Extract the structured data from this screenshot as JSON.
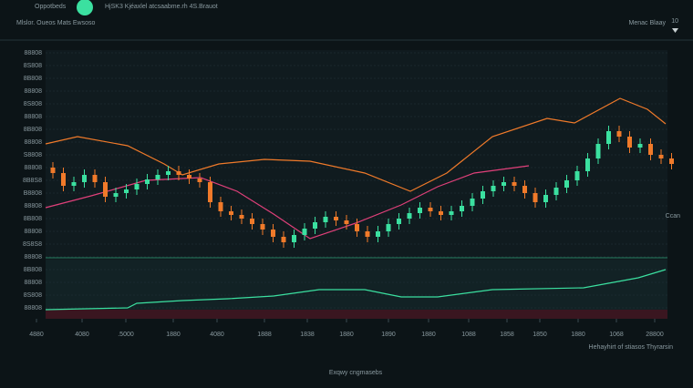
{
  "header": {
    "brand": "Oppotbeds",
    "ticker_info": "HjSK3 Kjéaxlel atcsaabme.rh 4S.Brauot",
    "menu": "Menac Blaay",
    "menu_value": "10",
    "subtitle": "Mlslor. Oueos Mats Ewsoso"
  },
  "footer": {
    "legend_note": "Hehayhirt of stiasos Thyrarsin",
    "caption": "Exqwy cngmasebs"
  },
  "chart_data": {
    "type": "candlestick",
    "side_label": "Ccan",
    "up_color": "#3be0a0",
    "down_color": "#f07a2a",
    "grid": true,
    "xlim": [
      0,
      710
    ],
    "ylim": [
      0,
      295
    ],
    "xticks": [
      {
        "value": 10,
        "label": "4880"
      },
      {
        "value": 60,
        "label": "4080"
      },
      {
        "value": 108,
        "label": ".5000"
      },
      {
        "value": 160,
        "label": "1880"
      },
      {
        "value": 208,
        "label": "4080"
      },
      {
        "value": 260,
        "label": "1888"
      },
      {
        "value": 307,
        "label": "1838"
      },
      {
        "value": 350,
        "label": "1880"
      },
      {
        "value": 396,
        "label": "1890"
      },
      {
        "value": 440,
        "label": "1880"
      },
      {
        "value": 484,
        "label": "1088"
      },
      {
        "value": 526,
        "label": "1858"
      },
      {
        "value": 562,
        "label": "1850"
      },
      {
        "value": 604,
        "label": "1880"
      },
      {
        "value": 646,
        "label": "1068"
      },
      {
        "value": 688,
        "label": "28800"
      }
    ],
    "yticks": [
      {
        "value": 12,
        "label": "88808"
      },
      {
        "value": 26,
        "label": "8S808"
      },
      {
        "value": 40,
        "label": "88808"
      },
      {
        "value": 54,
        "label": "8B808"
      },
      {
        "value": 68,
        "label": "88808"
      },
      {
        "value": 82,
        "label": "8S8S8"
      },
      {
        "value": 96,
        "label": "88808"
      },
      {
        "value": 110,
        "label": "8B808"
      },
      {
        "value": 124,
        "label": "88808"
      },
      {
        "value": 138,
        "label": "B8808"
      },
      {
        "value": 152,
        "label": "8B8S8"
      },
      {
        "value": 166,
        "label": "88808"
      },
      {
        "value": 180,
        "label": "S8808"
      },
      {
        "value": 194,
        "label": "88808"
      },
      {
        "value": 208,
        "label": "8B808"
      },
      {
        "value": 222,
        "label": "88808"
      },
      {
        "value": 236,
        "label": "8S808"
      },
      {
        "value": 250,
        "label": "88808"
      },
      {
        "value": 264,
        "label": "8B808"
      },
      {
        "value": 278,
        "label": "8S808"
      },
      {
        "value": 292,
        "label": "88808"
      }
    ],
    "x": [
      28,
      39.5,
      51,
      62.5,
      74,
      85.5,
      97,
      108.5,
      120,
      131.5,
      143,
      154.5,
      166,
      177.5,
      189,
      200.5,
      212,
      223.5,
      235,
      246.5,
      258,
      269.5,
      281,
      292.5,
      304,
      315.5,
      327,
      338.5,
      350,
      361.5,
      373,
      384.5,
      396,
      407.5,
      419,
      430.5,
      442,
      453.5,
      465,
      476.5,
      488,
      499.5,
      511,
      522.5,
      534,
      545.5,
      557,
      568.5,
      580,
      591.5,
      603,
      614.5,
      626,
      637.5,
      649,
      660.5,
      672,
      683.5,
      695,
      706.5
    ],
    "open": [
      166,
      160,
      146,
      150,
      158,
      150,
      134,
      138,
      142,
      148,
      153,
      158,
      162,
      158,
      154,
      150,
      128,
      118,
      114,
      110,
      104,
      98,
      90,
      84,
      92,
      99,
      106,
      112,
      108,
      104,
      96,
      90,
      96,
      104,
      110,
      116,
      122,
      118,
      114,
      118,
      124,
      132,
      140,
      146,
      150,
      146,
      138,
      128,
      136,
      144,
      152,
      162,
      176,
      192,
      206,
      200,
      188,
      192,
      180,
      176
    ],
    "high": [
      172,
      166,
      156,
      164,
      164,
      156,
      144,
      148,
      154,
      159,
      164,
      168,
      168,
      164,
      160,
      156,
      134,
      124,
      120,
      116,
      110,
      104,
      96,
      98,
      105,
      112,
      118,
      118,
      114,
      110,
      102,
      102,
      110,
      116,
      122,
      128,
      128,
      124,
      124,
      130,
      138,
      146,
      152,
      156,
      156,
      152,
      144,
      142,
      150,
      158,
      168,
      182,
      198,
      212,
      212,
      206,
      198,
      198,
      186,
      182
    ],
    "low": [
      154,
      140,
      140,
      144,
      144,
      128,
      128,
      132,
      136,
      142,
      147,
      152,
      152,
      148,
      144,
      122,
      112,
      108,
      104,
      98,
      92,
      84,
      78,
      78,
      86,
      93,
      100,
      102,
      98,
      90,
      84,
      84,
      90,
      98,
      104,
      110,
      112,
      108,
      108,
      112,
      118,
      126,
      134,
      140,
      140,
      132,
      122,
      122,
      130,
      138,
      146,
      156,
      170,
      186,
      194,
      182,
      182,
      174,
      170,
      164
    ],
    "close": [
      160,
      146,
      150,
      158,
      150,
      134,
      138,
      142,
      148,
      153,
      158,
      162,
      158,
      154,
      150,
      128,
      118,
      114,
      110,
      104,
      98,
      90,
      84,
      92,
      99,
      106,
      112,
      108,
      104,
      96,
      90,
      96,
      104,
      110,
      116,
      122,
      118,
      114,
      118,
      124,
      132,
      140,
      146,
      150,
      146,
      138,
      128,
      136,
      144,
      152,
      162,
      176,
      192,
      206,
      200,
      188,
      192,
      180,
      176,
      170
    ],
    "lines": [
      {
        "color": "#f07a2a",
        "x": [
          20,
          55,
          110,
          150,
          170,
          210,
          260,
          310,
          370,
          420,
          460,
          510,
          570,
          600,
          650,
          680,
          700
        ],
        "values": [
          192,
          200,
          190,
          170,
          158,
          170,
          175,
          173,
          160,
          140,
          160,
          200,
          220,
          215,
          242,
          230,
          214
        ]
      },
      {
        "color": "#e0407a",
        "x": [
          20,
          70,
          130,
          190,
          230,
          270,
          310,
          360,
          410,
          450,
          490,
          550
        ],
        "values": [
          122,
          135,
          152,
          155,
          140,
          115,
          88,
          105,
          125,
          145,
          160,
          168
        ]
      },
      {
        "color": "#3be0a0",
        "x": [
          20,
          110,
          120,
          170,
          220,
          270,
          320,
          370,
          410,
          450,
          510,
          610,
          670,
          700
        ],
        "values": [
          10,
          12,
          17,
          20,
          22,
          25,
          32,
          32,
          24,
          24,
          32,
          34,
          45,
          54
        ]
      }
    ]
  }
}
